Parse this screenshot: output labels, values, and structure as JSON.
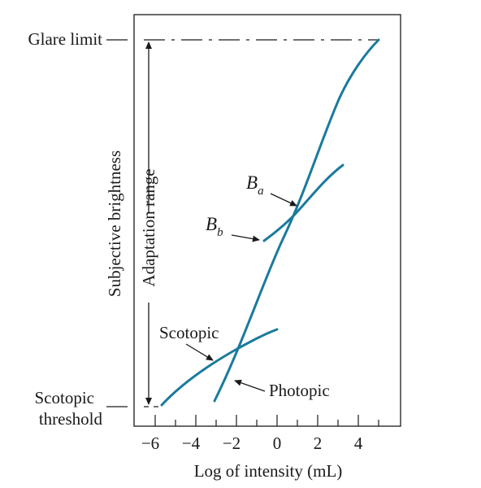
{
  "chart_data": {
    "type": "line",
    "xlabel": "Log of intensity (mL)",
    "ylabel": "Subjective brightness",
    "xlim": [
      -7,
      6
    ],
    "x_ticks": [
      -6,
      -4,
      -2,
      0,
      2,
      4
    ],
    "x_tick_labels": [
      "−6",
      "−4",
      "−2",
      "0",
      "2",
      "4"
    ],
    "colors": {
      "curve": "#1a7a9e",
      "axis": "#1a1a1a"
    },
    "series": [
      {
        "name": "Photopic",
        "x": [
          -3,
          -2,
          -1,
          0,
          1,
          2,
          3,
          4,
          5
        ],
        "y": [
          0.0,
          0.12,
          0.3,
          0.5,
          0.66,
          0.78,
          0.87,
          0.94,
          1.0
        ]
      },
      {
        "name": "Scotopic",
        "x": [
          -5.7,
          -4.5,
          -3,
          -1.5,
          0
        ],
        "y": [
          0.0,
          0.08,
          0.16,
          0.22,
          0.27
        ]
      },
      {
        "name": "B_b",
        "x": [
          -0.6,
          0.2,
          1.1,
          2.2,
          3.2
        ],
        "y": [
          0.44,
          0.48,
          0.55,
          0.63,
          0.69
        ]
      }
    ]
  },
  "labels": {
    "glare_limit": "Glare limit",
    "scotopic_threshold_line1": "Scotopic",
    "scotopic_threshold_line2": "threshold",
    "adaptation_range": "Adaptation range",
    "b_a_main": "B",
    "b_a_sub": "a",
    "b_b_main": "B",
    "b_b_sub": "b",
    "scotopic_curve": "Scotopic",
    "photopic_curve": "Photopic"
  }
}
